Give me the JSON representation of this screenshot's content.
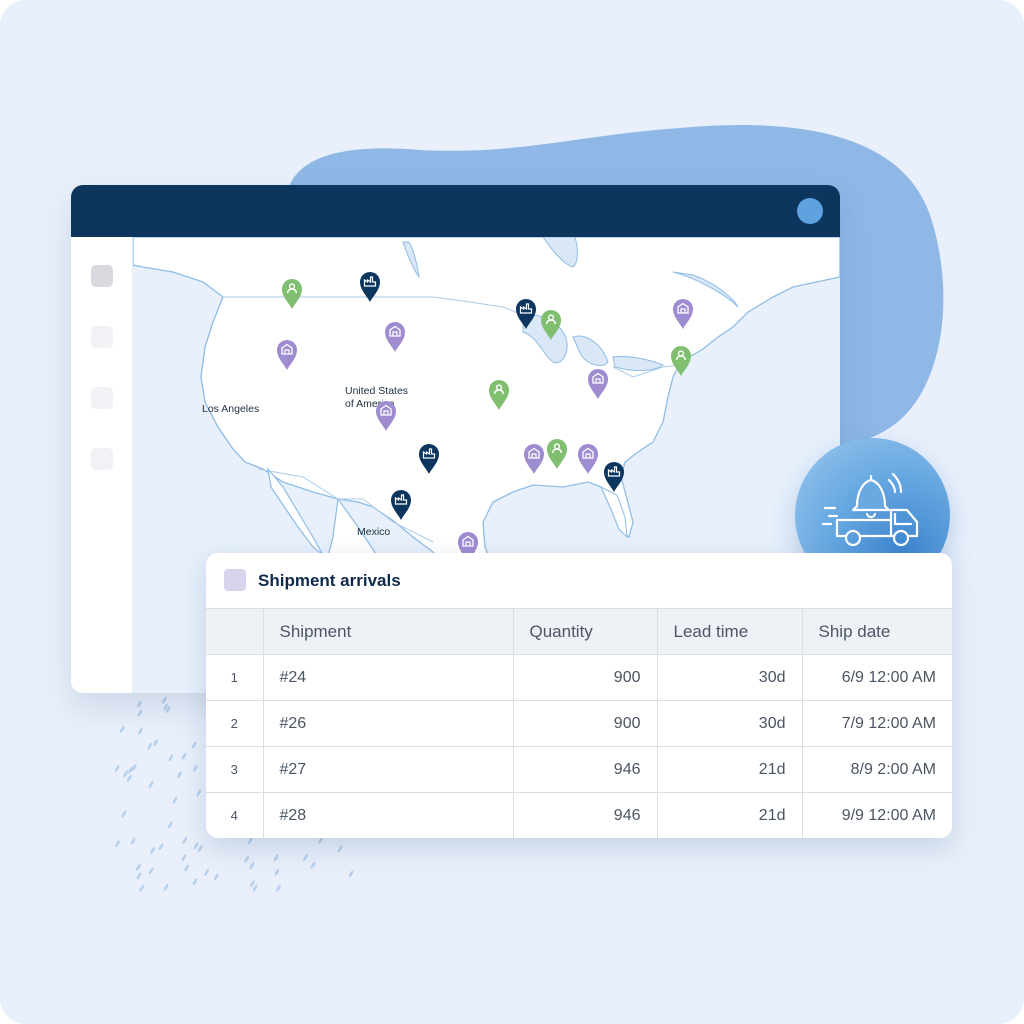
{
  "map": {
    "labels": {
      "los_angeles": "Los Angeles",
      "usa_line1": "United States",
      "usa_line2": "of America",
      "mexico": "Mexico"
    },
    "pin_colors": {
      "green": "#7fbf6f",
      "purple": "#9f8bd0",
      "navy": "#0c365e"
    },
    "pin_icons": {
      "green": "person-icon",
      "purple": "warehouse-icon",
      "navy": "factory-icon"
    }
  },
  "notification": {
    "icon": "truck-bell-icon"
  },
  "table": {
    "title": "Shipment arrivals",
    "columns": [
      "Shipment",
      "Quantity",
      "Lead time",
      "Ship date"
    ],
    "rows": [
      {
        "index": "1",
        "shipment": "#24",
        "quantity": "900",
        "lead_time": "30d",
        "ship_date": "6/9 12:00 AM"
      },
      {
        "index": "2",
        "shipment": "#26",
        "quantity": "900",
        "lead_time": "30d",
        "ship_date": "7/9 12:00 AM"
      },
      {
        "index": "3",
        "shipment": "#27",
        "quantity": "946",
        "lead_time": "21d",
        "ship_date": "8/9 2:00 AM"
      },
      {
        "index": "4",
        "shipment": "#28",
        "quantity": "946",
        "lead_time": "21d",
        "ship_date": "9/9 12:00 AM"
      }
    ]
  },
  "colors": {
    "titlebar": "#0c365e",
    "accent_blue": "#5ea2e0",
    "background": "#e9f0fb"
  }
}
